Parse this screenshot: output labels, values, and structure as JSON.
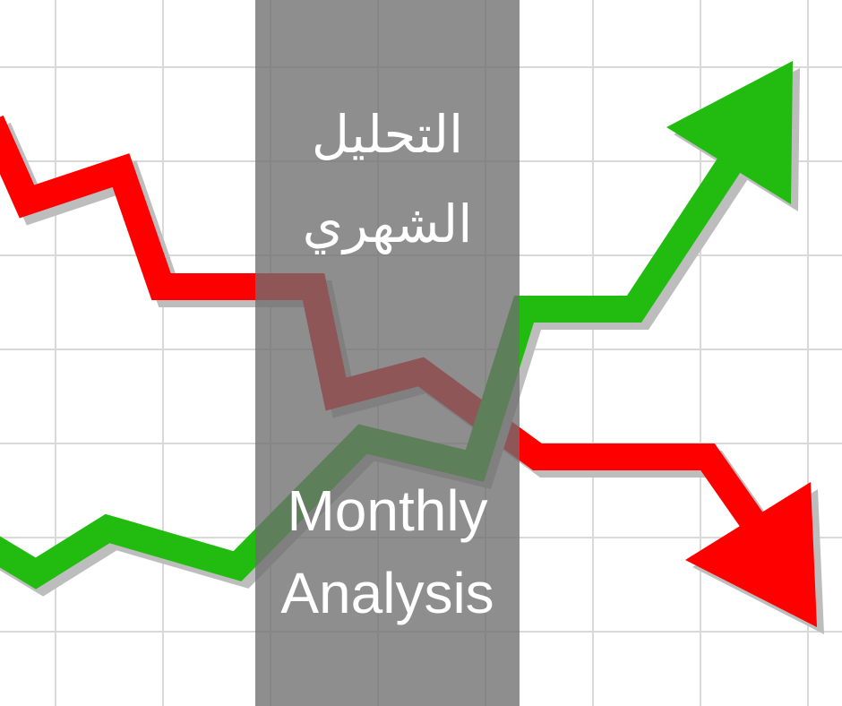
{
  "title_arabic": {
    "line1": "التحليل",
    "line2": "الشهري"
  },
  "title_english": {
    "line1": "Monthly",
    "line2": "Analysis"
  },
  "colors": {
    "background": "#ffffff",
    "grid": "#d9d9d9",
    "band": "#808080",
    "down_line": "#ff0000",
    "up_line": "#22bb0f",
    "shadow": "#bdbdbd",
    "text": "#ffffff"
  },
  "icons": {
    "down_trend": "red-zigzag-arrow-down",
    "up_trend": "green-zigzag-arrow-up"
  }
}
